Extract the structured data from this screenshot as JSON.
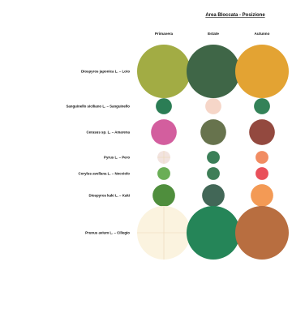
{
  "chart_data": {
    "type": "bubble-matrix",
    "title": "Area Bloccata - Posizione",
    "columns": [
      "Primavera",
      "Estate",
      "Autunno"
    ],
    "rows": [
      {
        "label": "Diospyros japonica L. – Loto",
        "cells": [
          {
            "size": 1.0,
            "color": "#a2ac44",
            "crosshair": false
          },
          {
            "size": 1.0,
            "color": "#3f6647",
            "crosshair": false
          },
          {
            "size": 1.0,
            "color": "#e3a333",
            "crosshair": false
          }
        ]
      },
      {
        "label": "Sanguinello siciliano L. – Sanguinello",
        "cells": [
          {
            "size": 0.3,
            "color": "#2b7d55",
            "crosshair": false
          },
          {
            "size": 0.3,
            "color": "#f6d6c8",
            "crosshair": false
          },
          {
            "size": 0.3,
            "color": "#338258",
            "crosshair": false
          }
        ]
      },
      {
        "label": "Cerasus sp. L. – Amarena",
        "cells": [
          {
            "size": 0.48,
            "color": "#d35e9e",
            "crosshair": false
          },
          {
            "size": 0.48,
            "color": "#67734d",
            "crosshair": false
          },
          {
            "size": 0.48,
            "color": "#93493f",
            "crosshair": false
          }
        ]
      },
      {
        "label": "Pyrus L. – Pero",
        "cells": [
          {
            "size": 0.24,
            "color": "#f2e3df",
            "crosshair": true
          },
          {
            "size": 0.24,
            "color": "#3b7f58",
            "crosshair": false
          },
          {
            "size": 0.24,
            "color": "#f18c62",
            "crosshair": false
          }
        ]
      },
      {
        "label": "Corylus avellana L. – Nocciolo",
        "cells": [
          {
            "size": 0.24,
            "color": "#6aae56",
            "crosshair": false
          },
          {
            "size": 0.24,
            "color": "#3e7e57",
            "crosshair": false
          },
          {
            "size": 0.24,
            "color": "#e9505a",
            "crosshair": false
          }
        ]
      },
      {
        "label": "Diospyros kaki L. – Kaki",
        "cells": [
          {
            "size": 0.42,
            "color": "#4f8e3d",
            "crosshair": false
          },
          {
            "size": 0.42,
            "color": "#426757",
            "crosshair": false
          },
          {
            "size": 0.42,
            "color": "#f39a55",
            "crosshair": false
          }
        ]
      },
      {
        "label": "Prunus avium L. – Ciliegio",
        "cells": [
          {
            "size": 1.0,
            "color": "#fbf3df",
            "crosshair": true
          },
          {
            "size": 1.0,
            "color": "#258558",
            "crosshair": false
          },
          {
            "size": 1.0,
            "color": "#b86e40",
            "crosshair": false
          }
        ]
      }
    ]
  }
}
